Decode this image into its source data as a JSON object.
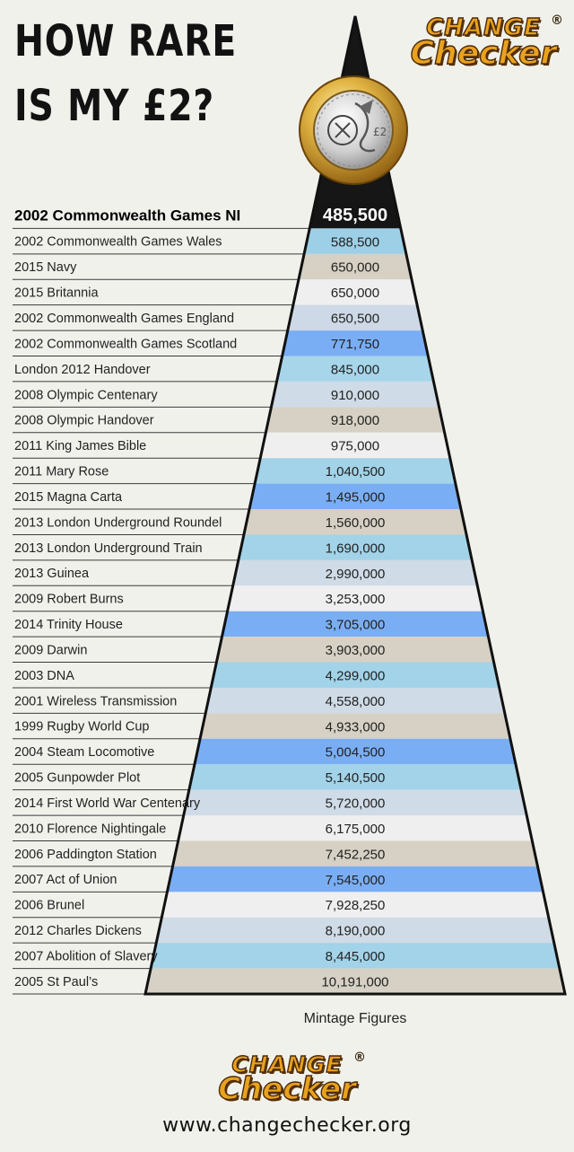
{
  "title": {
    "line1": "HOW RARE",
    "line2": "IS MY £2?"
  },
  "logo": {
    "line1": "CHANGE",
    "line2": "Checker",
    "reg": "®"
  },
  "website": "www.changechecker.org",
  "coin_icon": "two-pound-coin-icon",
  "chart_data": {
    "type": "bar",
    "xlabel": "Mintage Figures",
    "highlight": "2002 Commonwealth Games NI",
    "categories": [
      "2002 Commonwealth Games NI",
      "2002 Commonwealth Games Wales",
      "2015 Navy",
      "2015 Britannia",
      "2002 Commonwealth Games England",
      "2002 Commonwealth Games Scotland",
      "London 2012 Handover",
      "2008 Olympic Centenary",
      "2008 Olympic Handover",
      "2011 King James Bible",
      "2011 Mary Rose",
      "2015 Magna Carta",
      "2013 London Underground Roundel",
      "2013 London Underground Train",
      "2013 Guinea",
      "2009 Robert Burns",
      "2014 Trinity House",
      "2009 Darwin",
      "2003 DNA",
      "2001 Wireless Transmission",
      "1999 Rugby World Cup",
      "2004 Steam Locomotive",
      "2005 Gunpowder Plot",
      "2014 First World War Centenary",
      "2010 Florence Nightingale",
      "2006 Paddington Station",
      "2007 Act of Union",
      "2006 Brunel",
      "2012 Charles Dickens",
      "2007 Abolition of Slavery",
      "2005 St Paul’s"
    ],
    "labels": [
      "485,500",
      "588,500",
      "650,000",
      "650,000",
      "650,500",
      "771,750",
      "845,000",
      "910,000",
      "918,000",
      "975,000",
      "1,040,500",
      "1,495,000",
      "1,560,000",
      "1,690,000",
      "2,990,000",
      "3,253,000",
      "3,705,000",
      "3,903,000",
      "4,299,000",
      "4,558,000",
      "4,933,000",
      "5,004,500",
      "5,140,500",
      "5,720,000",
      "6,175,000",
      "7,452,250",
      "7,545,000",
      "7,928,250",
      "8,190,000",
      "8,445,000",
      "10,191,000"
    ],
    "values": [
      485500,
      588500,
      650000,
      650000,
      650500,
      771750,
      845000,
      910000,
      918000,
      975000,
      1040500,
      1495000,
      1560000,
      1690000,
      2990000,
      3253000,
      3705000,
      3903000,
      4299000,
      4558000,
      4933000,
      5004500,
      5140500,
      5720000,
      6175000,
      7452250,
      7545000,
      7928250,
      8190000,
      8445000,
      10191000
    ],
    "band_colors": [
      "#151515",
      "#9dd0e6",
      "#d6d1c4",
      "#efefef",
      "#cdd9e6",
      "#7aaef4",
      "#a7d6ea",
      "#cfdbe6",
      "#d6d1c4",
      "#efefef",
      "#a2d3e8",
      "#7aaef4",
      "#d6d1c4",
      "#a2d3e8",
      "#cfdbe6",
      "#efefef",
      "#7aaef4",
      "#d6d1c4",
      "#a2d3e8",
      "#cfdbe6",
      "#d6d1c4",
      "#7aaef4",
      "#a2d3e8",
      "#cfdbe6",
      "#efefef",
      "#d6d1c4",
      "#7aaef4",
      "#efefef",
      "#cfdbe6",
      "#a2d3e8",
      "#d6d1c4"
    ]
  }
}
